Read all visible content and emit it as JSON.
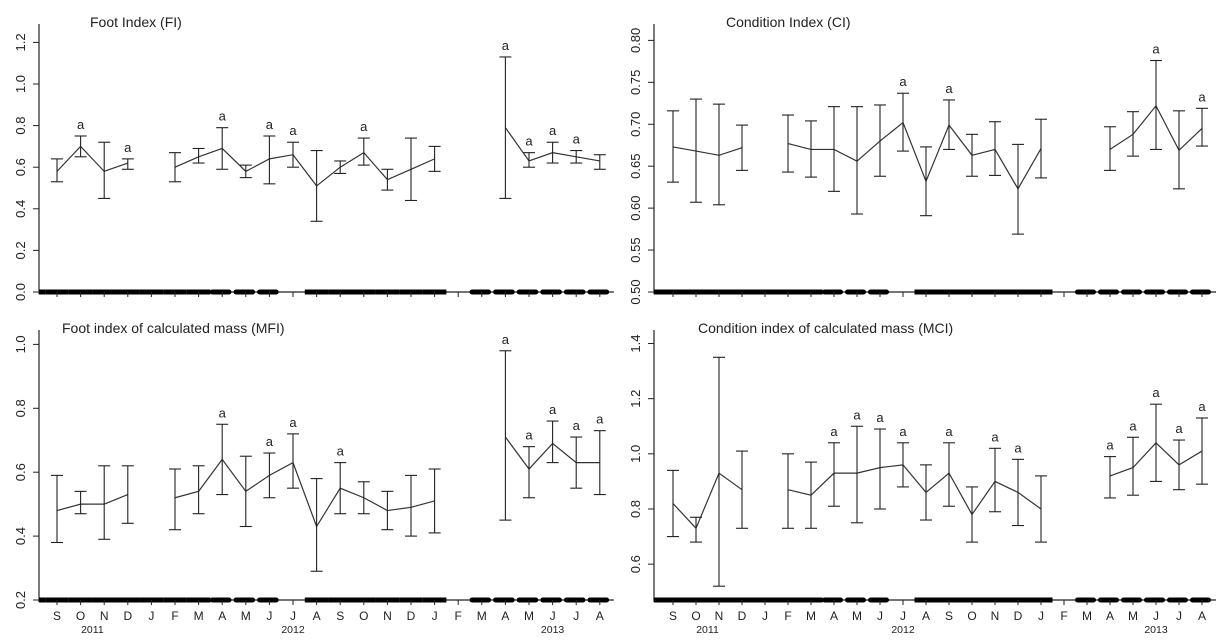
{
  "figure": {
    "x_tick_labels": [
      "S",
      "O",
      "N",
      "D",
      "J",
      "F",
      "M",
      "A",
      "M",
      "J",
      "J",
      "A",
      "S",
      "O",
      "N",
      "D",
      "J",
      "F",
      "M",
      "A",
      "M",
      "J",
      "J",
      "A"
    ],
    "year_labels": [
      {
        "label": "2011",
        "month_index": 1.5
      },
      {
        "label": "2012",
        "month_index": 10
      },
      {
        "label": "2013",
        "month_index": 21
      }
    ]
  },
  "chart_data": [
    {
      "type": "line",
      "title": "Foot Index  (FI)",
      "ylim": [
        0,
        1.25
      ],
      "y_ticks": [
        0.0,
        0.2,
        0.4,
        0.6,
        0.8,
        1.0,
        1.2
      ],
      "y_tick_labels": [
        "0.0",
        "0.2",
        "0.4",
        "0.6",
        "0.8",
        "1.0",
        "1.2"
      ],
      "x": [
        "S",
        "O",
        "N",
        "D",
        "J",
        "F",
        "M",
        "A",
        "M",
        "J",
        "J",
        "A",
        "S",
        "O",
        "N",
        "D",
        "J",
        "F",
        "M",
        "A",
        "M",
        "J",
        "J",
        "A"
      ],
      "mean": [
        0.58,
        0.7,
        0.58,
        0.62,
        null,
        0.6,
        0.65,
        0.69,
        0.58,
        0.64,
        0.66,
        0.51,
        0.6,
        0.67,
        0.54,
        0.59,
        0.64,
        null,
        null,
        0.79,
        0.63,
        0.67,
        0.65,
        0.63
      ],
      "lower": [
        0.53,
        0.65,
        0.45,
        0.59,
        null,
        0.53,
        0.62,
        0.59,
        0.55,
        0.52,
        0.6,
        0.34,
        0.57,
        0.61,
        0.49,
        0.44,
        0.58,
        null,
        null,
        0.45,
        0.6,
        0.62,
        0.62,
        0.59
      ],
      "upper": [
        0.64,
        0.75,
        0.72,
        0.64,
        null,
        0.67,
        0.69,
        0.79,
        0.61,
        0.75,
        0.72,
        0.68,
        0.63,
        0.74,
        0.59,
        0.74,
        0.7,
        null,
        null,
        1.13,
        0.67,
        0.72,
        0.68,
        0.66
      ],
      "letters": [
        "",
        "a",
        "",
        "a",
        "",
        "",
        "",
        "a",
        "",
        "a",
        "a",
        "",
        "",
        "a",
        "",
        "",
        "",
        "",
        "",
        "a",
        "a",
        "a",
        "a",
        ""
      ],
      "baseline_dashes": [
        [
          0,
          7,
          "heavy"
        ],
        [
          7,
          10,
          "dash"
        ],
        [
          11,
          17,
          "heavy"
        ],
        [
          18,
          24,
          "dash"
        ]
      ]
    },
    {
      "type": "line",
      "title": "Condition Index  (CI)",
      "ylim": [
        0.5,
        0.81
      ],
      "y_ticks": [
        0.5,
        0.55,
        0.6,
        0.65,
        0.7,
        0.75,
        0.8
      ],
      "y_tick_labels": [
        "0.50",
        "0.55",
        "0.60",
        "0.65",
        "0.70",
        "0.75",
        "0.80"
      ],
      "x": [
        "S",
        "O",
        "N",
        "D",
        "J",
        "F",
        "M",
        "A",
        "M",
        "J",
        "J",
        "A",
        "S",
        "O",
        "N",
        "D",
        "J",
        "F",
        "M",
        "A",
        "M",
        "J",
        "J",
        "A"
      ],
      "mean": [
        0.673,
        0.668,
        0.663,
        0.672,
        null,
        0.677,
        0.67,
        0.67,
        0.656,
        0.68,
        0.702,
        0.632,
        0.699,
        0.663,
        0.67,
        0.623,
        0.671,
        null,
        null,
        0.67,
        0.688,
        0.722,
        0.669,
        0.695
      ],
      "lower": [
        0.631,
        0.607,
        0.604,
        0.645,
        null,
        0.643,
        0.637,
        0.62,
        0.593,
        0.638,
        0.668,
        0.591,
        0.67,
        0.638,
        0.639,
        0.569,
        0.636,
        null,
        null,
        0.645,
        0.662,
        0.67,
        0.623,
        0.674
      ],
      "upper": [
        0.716,
        0.73,
        0.724,
        0.699,
        null,
        0.711,
        0.704,
        0.721,
        0.721,
        0.723,
        0.737,
        0.673,
        0.729,
        0.688,
        0.703,
        0.676,
        0.706,
        null,
        null,
        0.697,
        0.715,
        0.776,
        0.716,
        0.719
      ],
      "letters": [
        "",
        "",
        "",
        "",
        "",
        "",
        "",
        "",
        "",
        "",
        "a",
        "",
        "a",
        "",
        "",
        "",
        "",
        "",
        "",
        "",
        "",
        "a",
        "",
        "a"
      ],
      "baseline_dashes": [
        [
          0,
          7,
          "heavy"
        ],
        [
          7,
          10,
          "dash"
        ],
        [
          11,
          17,
          "heavy"
        ],
        [
          18,
          24,
          "dash"
        ]
      ]
    },
    {
      "type": "line",
      "title": "Foot index of calculated mass  (MFI)",
      "ylim": [
        0.2,
        1.02
      ],
      "y_ticks": [
        0.2,
        0.4,
        0.6,
        0.8,
        1.0
      ],
      "y_tick_labels": [
        "0.2",
        "0.4",
        "0.6",
        "0.8",
        "1.0"
      ],
      "x": [
        "S",
        "O",
        "N",
        "D",
        "J",
        "F",
        "M",
        "A",
        "M",
        "J",
        "J",
        "A",
        "S",
        "O",
        "N",
        "D",
        "J",
        "F",
        "M",
        "A",
        "M",
        "J",
        "J",
        "A"
      ],
      "mean": [
        0.48,
        0.5,
        0.5,
        0.53,
        null,
        0.52,
        0.54,
        0.64,
        0.54,
        0.59,
        0.63,
        0.43,
        0.55,
        0.52,
        0.48,
        0.49,
        0.51,
        null,
        null,
        0.71,
        0.61,
        0.69,
        0.63,
        0.63
      ],
      "lower": [
        0.38,
        0.47,
        0.39,
        0.44,
        null,
        0.42,
        0.47,
        0.53,
        0.43,
        0.52,
        0.55,
        0.29,
        0.47,
        0.47,
        0.42,
        0.4,
        0.41,
        null,
        null,
        0.45,
        0.52,
        0.63,
        0.55,
        0.53
      ],
      "upper": [
        0.59,
        0.54,
        0.62,
        0.62,
        null,
        0.61,
        0.62,
        0.75,
        0.65,
        0.66,
        0.72,
        0.58,
        0.63,
        0.57,
        0.54,
        0.59,
        0.61,
        null,
        null,
        0.98,
        0.68,
        0.76,
        0.71,
        0.73
      ],
      "letters": [
        "",
        "",
        "",
        "",
        "",
        "",
        "",
        "a",
        "",
        "a",
        "a",
        "",
        "a",
        "",
        "",
        "",
        "",
        "",
        "",
        "a",
        "a",
        "a",
        "a",
        "a"
      ],
      "baseline_dashes": [
        [
          0,
          7,
          "heavy"
        ],
        [
          7,
          10,
          "dash"
        ],
        [
          11,
          17,
          "heavy"
        ],
        [
          18,
          24,
          "dash"
        ]
      ]
    },
    {
      "type": "line",
      "title": "Condition index of calculated mass  (MCI)",
      "ylim": [
        0.47,
        1.42
      ],
      "y_ticks": [
        0.6,
        0.8,
        1.0,
        1.2,
        1.4
      ],
      "y_tick_labels": [
        "0.6",
        "0.8",
        "1.0",
        "1.2",
        "1.4"
      ],
      "x": [
        "S",
        "O",
        "N",
        "D",
        "J",
        "F",
        "M",
        "A",
        "M",
        "J",
        "J",
        "A",
        "S",
        "O",
        "N",
        "D",
        "J",
        "F",
        "M",
        "A",
        "M",
        "J",
        "J",
        "A"
      ],
      "mean": [
        0.82,
        0.73,
        0.93,
        0.87,
        null,
        0.87,
        0.85,
        0.93,
        0.93,
        0.95,
        0.96,
        0.86,
        0.93,
        0.78,
        0.9,
        0.86,
        0.8,
        null,
        null,
        0.92,
        0.95,
        1.04,
        0.96,
        1.01
      ],
      "lower": [
        0.7,
        0.68,
        0.52,
        0.73,
        null,
        0.73,
        0.73,
        0.81,
        0.75,
        0.8,
        0.88,
        0.76,
        0.81,
        0.68,
        0.79,
        0.74,
        0.68,
        null,
        null,
        0.84,
        0.85,
        0.9,
        0.87,
        0.89
      ],
      "upper": [
        0.94,
        0.77,
        1.35,
        1.01,
        null,
        1.0,
        0.97,
        1.04,
        1.1,
        1.09,
        1.04,
        0.96,
        1.04,
        0.88,
        1.02,
        0.98,
        0.92,
        null,
        null,
        0.99,
        1.06,
        1.18,
        1.05,
        1.13
      ],
      "letters": [
        "",
        "",
        "",
        "",
        "",
        "",
        "",
        "a",
        "a",
        "a",
        "a",
        "",
        "a",
        "",
        "a",
        "a",
        "",
        "",
        "",
        "a",
        "a",
        "a",
        "a",
        "a"
      ],
      "baseline_dashes": [
        [
          0,
          7,
          "heavy"
        ],
        [
          7,
          10,
          "dash"
        ],
        [
          11,
          17,
          "heavy"
        ],
        [
          18,
          24,
          "dash"
        ]
      ]
    }
  ]
}
